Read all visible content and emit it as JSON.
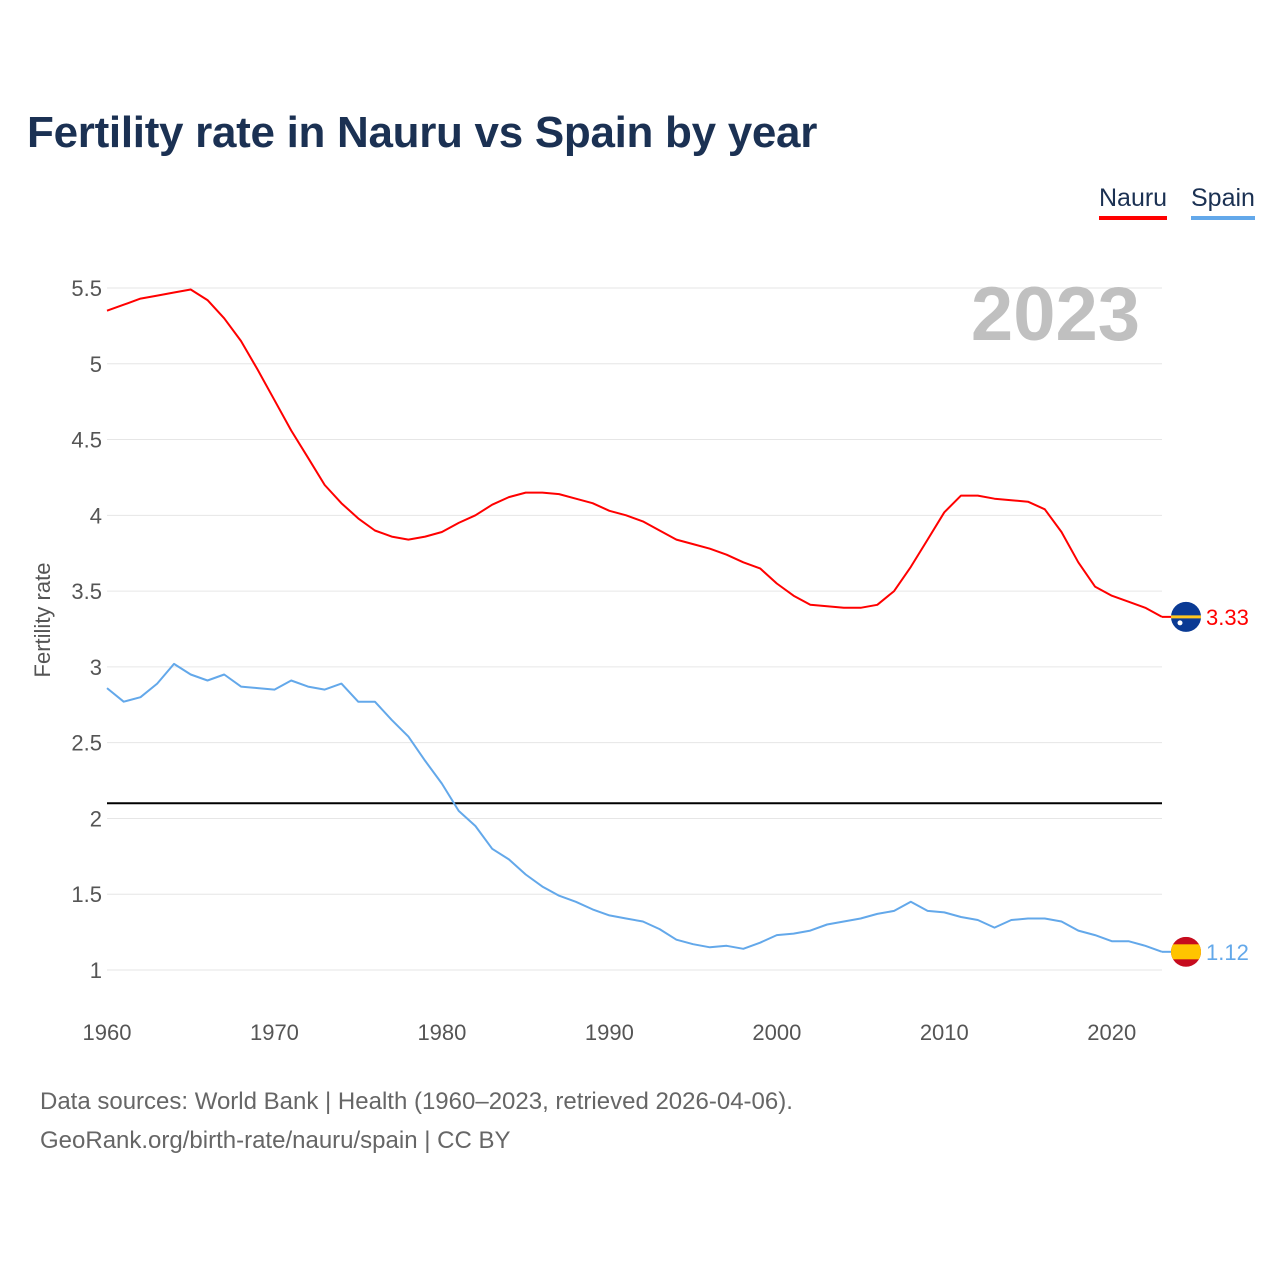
{
  "colors": {
    "nauru": "#ff0000",
    "spain": "#63a8ea",
    "grid": "#e6e6e6",
    "threshold": "#000000",
    "year": "#c0c0c0",
    "title": "#1b3153"
  },
  "chart_data": {
    "type": "line",
    "title": "Fertility rate in Nauru vs Spain by year",
    "xlabel": "",
    "ylabel": "Fertility rate",
    "xlim": [
      1960,
      2023
    ],
    "ylim": [
      1,
      5.5
    ],
    "xticks": [
      "1960",
      "1970",
      "1980",
      "1990",
      "2000",
      "2010",
      "2020"
    ],
    "yticks": [
      "1",
      "1.5",
      "2",
      "2.5",
      "3",
      "3.5",
      "4",
      "4.5",
      "5",
      "5.5"
    ],
    "grid": true,
    "legend_position": "top-right",
    "year_label": "2023",
    "reference_line": 2.1,
    "x": [
      1960,
      1961,
      1962,
      1963,
      1964,
      1965,
      1966,
      1967,
      1968,
      1969,
      1970,
      1971,
      1972,
      1973,
      1974,
      1975,
      1976,
      1977,
      1978,
      1979,
      1980,
      1981,
      1982,
      1983,
      1984,
      1985,
      1986,
      1987,
      1988,
      1989,
      1990,
      1991,
      1992,
      1993,
      1994,
      1995,
      1996,
      1997,
      1998,
      1999,
      2000,
      2001,
      2002,
      2003,
      2004,
      2005,
      2006,
      2007,
      2008,
      2009,
      2010,
      2011,
      2012,
      2013,
      2014,
      2015,
      2016,
      2017,
      2018,
      2019,
      2020,
      2021,
      2022,
      2023
    ],
    "series": [
      {
        "name": "Nauru",
        "end_label": "3.33",
        "values": [
          5.35,
          5.39,
          5.43,
          5.45,
          5.47,
          5.49,
          5.42,
          5.3,
          5.15,
          4.96,
          4.76,
          4.56,
          4.38,
          4.2,
          4.08,
          3.98,
          3.9,
          3.86,
          3.84,
          3.86,
          3.89,
          3.95,
          4.0,
          4.07,
          4.12,
          4.15,
          4.15,
          4.14,
          4.11,
          4.08,
          4.03,
          4.0,
          3.96,
          3.9,
          3.84,
          3.81,
          3.78,
          3.74,
          3.69,
          3.65,
          3.55,
          3.47,
          3.41,
          3.4,
          3.39,
          3.39,
          3.41,
          3.5,
          3.66,
          3.84,
          4.02,
          4.13,
          4.13,
          4.11,
          4.1,
          4.09,
          4.04,
          3.89,
          3.69,
          3.53,
          3.47,
          3.43,
          3.39,
          3.33
        ]
      },
      {
        "name": "Spain",
        "end_label": "1.12",
        "values": [
          2.86,
          2.77,
          2.8,
          2.89,
          3.02,
          2.95,
          2.91,
          2.95,
          2.87,
          2.86,
          2.85,
          2.91,
          2.87,
          2.85,
          2.89,
          2.77,
          2.77,
          2.65,
          2.54,
          2.38,
          2.23,
          2.05,
          1.95,
          1.8,
          1.73,
          1.63,
          1.55,
          1.49,
          1.45,
          1.4,
          1.36,
          1.34,
          1.32,
          1.27,
          1.2,
          1.17,
          1.15,
          1.16,
          1.14,
          1.18,
          1.23,
          1.24,
          1.26,
          1.3,
          1.32,
          1.34,
          1.37,
          1.39,
          1.45,
          1.39,
          1.38,
          1.35,
          1.33,
          1.28,
          1.33,
          1.34,
          1.34,
          1.32,
          1.26,
          1.23,
          1.19,
          1.19,
          1.16,
          1.12
        ]
      }
    ]
  },
  "footer": {
    "sources": "Data sources: World Bank | Health (1960–2023, retrieved 2026-04-06).",
    "attribution": "GeoRank.org/birth-rate/nauru/spain | CC BY"
  }
}
